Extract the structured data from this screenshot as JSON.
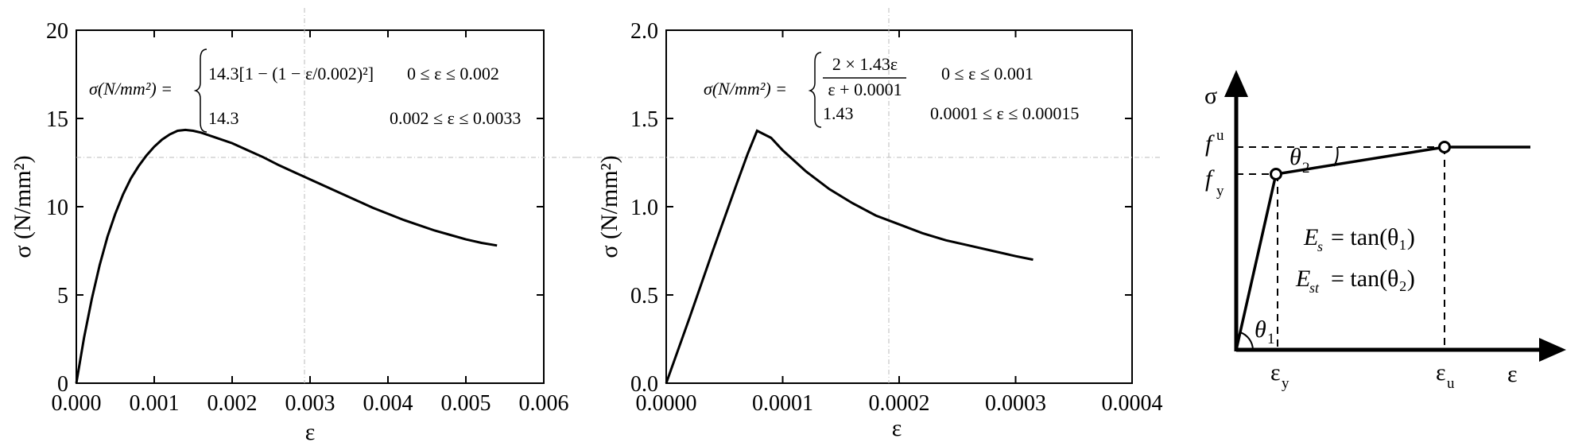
{
  "chart_data": [
    {
      "type": "line",
      "xlabel": "ε",
      "ylabel": "σ (N/mm²)",
      "xlim": [
        0,
        0.006
      ],
      "ylim": [
        0,
        20
      ],
      "xticks": [
        "0.000",
        "0.001",
        "0.002",
        "0.003",
        "0.004",
        "0.005",
        "0.006"
      ],
      "yticks": [
        "0",
        "5",
        "10",
        "15",
        "20"
      ],
      "series": [
        {
          "x": [
            0,
            0.0001,
            0.0002,
            0.0003,
            0.0004,
            0.0005,
            0.0006,
            0.0007,
            0.0008,
            0.0009,
            0.001,
            0.0011,
            0.0012,
            0.0013,
            0.0014,
            0.0015,
            0.0016,
            0.0018,
            0.002,
            0.0022,
            0.0024,
            0.0026,
            0.0028,
            0.003,
            0.0032,
            0.0034,
            0.0036,
            0.0038,
            0.004,
            0.0042,
            0.0044,
            0.0046,
            0.0048,
            0.005,
            0.0052,
            0.0054
          ],
          "y": [
            0,
            2.6,
            4.8,
            6.7,
            8.3,
            9.6,
            10.7,
            11.6,
            12.3,
            12.9,
            13.4,
            13.8,
            14.1,
            14.3,
            14.35,
            14.3,
            14.2,
            13.9,
            13.6,
            13.2,
            12.8,
            12.35,
            11.95,
            11.55,
            11.15,
            10.75,
            10.35,
            9.95,
            9.6,
            9.25,
            8.95,
            8.65,
            8.4,
            8.15,
            7.95,
            7.8
          ]
        }
      ],
      "equation": {
        "lhs": "σ(N/mm²) =",
        "case1": "14.3[1 − (1 − ε/0.002)²]",
        "case1_range": "0 ≤ ε ≤ 0.002",
        "case2": "14.3",
        "case2_range": "0.002 ≤ ε ≤ 0.0033"
      }
    },
    {
      "type": "line",
      "xlabel": "ε",
      "ylabel": "σ (N/mm²)",
      "xlim": [
        0,
        0.0004
      ],
      "ylim": [
        0,
        2.0
      ],
      "xticks": [
        "0.0000",
        "0.0001",
        "0.0002",
        "0.0003",
        "0.0004"
      ],
      "yticks": [
        "0.0",
        "0.5",
        "1.0",
        "1.5",
        "2.0"
      ],
      "series": [
        {
          "x": [
            0,
            2e-05,
            4e-05,
            6e-05,
            7e-05,
            7.8e-05,
            9e-05,
            0.0001,
            0.00012,
            0.00014,
            0.00016,
            0.00018,
            0.0002,
            0.00022,
            0.00024,
            0.00026,
            0.00028,
            0.0003,
            0.000315
          ],
          "y": [
            0,
            0.37,
            0.75,
            1.12,
            1.3,
            1.43,
            1.39,
            1.32,
            1.2,
            1.1,
            1.02,
            0.95,
            0.9,
            0.85,
            0.81,
            0.78,
            0.75,
            0.72,
            0.7
          ]
        }
      ],
      "equation": {
        "lhs": "σ(N/mm²) =",
        "case1_num": "2 × 1.43ε",
        "case1_den": "ε + 0.0001",
        "case1_range": "0 ≤ ε ≤ 0.001",
        "case2": "1.43",
        "case2_range": "0.0001 ≤ ε ≤ 0.00015"
      }
    },
    {
      "type": "line",
      "xlabel": "ε",
      "ylabel": "σ",
      "labels": {
        "fu_main": "f",
        "fu_sub": "u",
        "fy_main": "f",
        "fy_sub": "y",
        "ey_main": "ε",
        "ey_sub": "y",
        "eu_main": "ε",
        "eu_sub": "u",
        "theta1_main": "θ",
        "theta1_sub": "1",
        "theta2_main": "θ",
        "theta2_sub": "2",
        "es_lhs": "E",
        "es_sub": "s",
        "es_rhs": "= tan(θ₁)",
        "est_lhs": "E",
        "est_sub": "st",
        "est_rhs": "= tan(θ₂)"
      }
    }
  ]
}
